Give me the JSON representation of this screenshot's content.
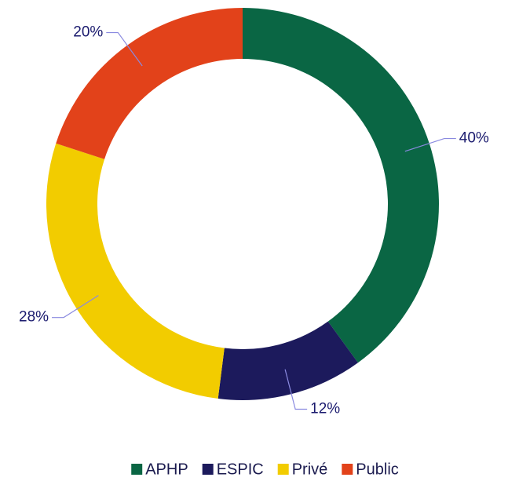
{
  "chart_data": {
    "type": "donut",
    "categories": [
      "APHP",
      "ESPIC",
      "Privé",
      "Public"
    ],
    "values": [
      40,
      12,
      28,
      20
    ],
    "value_labels": [
      "40%",
      "12%",
      "28%",
      "20%"
    ],
    "colors": [
      "#0a6644",
      "#1c1a5c",
      "#f2cc00",
      "#e2421a"
    ],
    "legend": "bottom"
  }
}
